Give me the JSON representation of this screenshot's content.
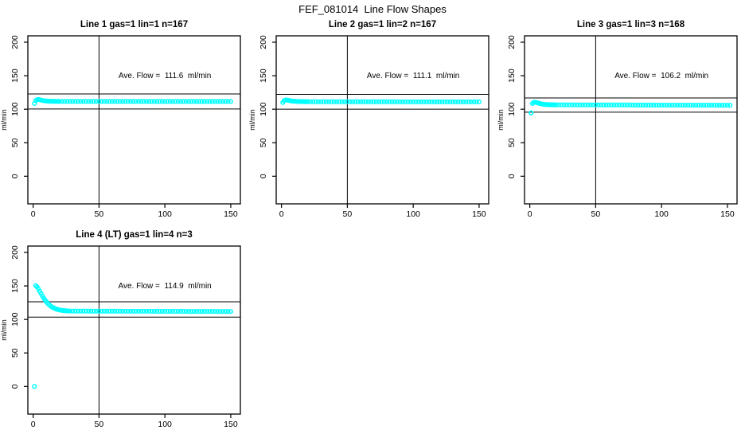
{
  "page_title": "FEF_081014  Line Flow Shapes",
  "layout": {
    "x_ticks": [
      0,
      50,
      100,
      150
    ],
    "y_ticks": [
      0,
      50,
      100,
      150,
      200
    ],
    "x_domain": [
      -4,
      157.3
    ],
    "y_domain": [
      -41.2,
      209.5
    ],
    "y_axis_label": "ml/min",
    "grid": "off",
    "legend": "none"
  },
  "style": {
    "point_color": "#00ffff",
    "axis_color": "#000000",
    "background": "#ffffff"
  },
  "chart_data": [
    {
      "id": "line1",
      "type": "scatter",
      "title": "Line 1 gas=1 lin=1 n=167",
      "annotation": "Ave. Flow =  111.6  ml/min",
      "ave_flow_ml_min": 111.6,
      "n": 167,
      "ref_lines": [
        122.8,
        100.4
      ],
      "vline_x": 50,
      "annotation_xy": [
        100,
        150
      ],
      "head_points": [
        [
          1,
          108.5
        ],
        [
          2,
          112.8
        ],
        [
          3,
          114.3
        ],
        [
          4,
          114.6
        ],
        [
          5,
          114.2
        ],
        [
          6,
          113.6
        ],
        [
          7,
          113.1
        ],
        [
          8,
          112.8
        ],
        [
          9,
          112.5
        ],
        [
          10,
          112.3
        ],
        [
          11,
          112.1
        ],
        [
          12,
          112.0
        ],
        [
          13,
          111.9
        ],
        [
          14,
          111.9
        ],
        [
          15,
          111.8
        ],
        [
          16,
          111.8
        ],
        [
          17,
          111.7
        ],
        [
          18,
          111.7
        ],
        [
          19,
          111.7
        ],
        [
          20,
          111.6
        ]
      ],
      "tail": {
        "x_from": 22,
        "x_to": 151,
        "step": 2,
        "y_from": 111.6,
        "y_to": 111.5
      }
    },
    {
      "id": "line2",
      "type": "scatter",
      "title": "Line 2 gas=1 lin=2 n=167",
      "annotation": "Ave. Flow =  111.1  ml/min",
      "ave_flow_ml_min": 111.1,
      "n": 167,
      "ref_lines": [
        122.2,
        100.0
      ],
      "vline_x": 50,
      "annotation_xy": [
        100,
        150
      ],
      "head_points": [
        [
          1,
          110.0
        ],
        [
          2,
          112.6
        ],
        [
          3,
          113.6
        ],
        [
          4,
          113.8
        ],
        [
          5,
          113.4
        ],
        [
          6,
          112.9
        ],
        [
          7,
          112.5
        ],
        [
          8,
          112.2
        ],
        [
          9,
          112.0
        ],
        [
          10,
          111.8
        ],
        [
          11,
          111.7
        ],
        [
          12,
          111.6
        ],
        [
          13,
          111.5
        ],
        [
          14,
          111.4
        ],
        [
          15,
          111.4
        ],
        [
          16,
          111.3
        ],
        [
          17,
          111.3
        ],
        [
          18,
          111.2
        ],
        [
          19,
          111.2
        ],
        [
          20,
          111.2
        ]
      ],
      "tail": {
        "x_from": 22,
        "x_to": 151,
        "step": 2,
        "y_from": 111.1,
        "y_to": 111.0
      }
    },
    {
      "id": "line3",
      "type": "scatter",
      "title": "Line 3 gas=1 lin=3 n=168",
      "annotation": "Ave. Flow =  106.2  ml/min",
      "ave_flow_ml_min": 106.2,
      "n": 168,
      "ref_lines": [
        116.8,
        95.6
      ],
      "vline_x": 50,
      "annotation_xy": [
        100,
        150
      ],
      "head_points": [
        [
          1,
          94.5
        ],
        [
          2,
          108.5
        ],
        [
          3,
          110.2
        ],
        [
          4,
          110.4
        ],
        [
          5,
          110.0
        ],
        [
          6,
          109.4
        ],
        [
          7,
          108.8
        ],
        [
          8,
          108.3
        ],
        [
          9,
          107.9
        ],
        [
          10,
          107.5
        ],
        [
          11,
          107.3
        ],
        [
          12,
          107.1
        ],
        [
          13,
          106.9
        ],
        [
          14,
          106.8
        ],
        [
          15,
          106.7
        ],
        [
          16,
          106.7
        ],
        [
          17,
          106.6
        ],
        [
          18,
          106.6
        ],
        [
          19,
          106.5
        ],
        [
          20,
          106.5
        ],
        [
          1,
          94.5
        ]
      ],
      "tail": {
        "x_from": 22,
        "x_to": 152,
        "step": 2,
        "y_from": 106.5,
        "y_to": 105.9
      }
    },
    {
      "id": "line4",
      "type": "scatter",
      "title": "Line 4 (LT) gas=1 lin=4 n=3",
      "annotation": "Ave. Flow =  114.9  ml/min",
      "ave_flow_ml_min": 114.9,
      "n": 3,
      "ref_lines": [
        126.4,
        103.4
      ],
      "vline_x": 50,
      "annotation_xy": [
        100,
        150
      ],
      "head_points": [
        [
          1,
          0.0
        ],
        [
          2,
          150.5
        ],
        [
          3,
          148.5
        ],
        [
          4,
          145.5
        ],
        [
          5,
          142.0
        ],
        [
          6,
          138.5
        ],
        [
          7,
          135.0
        ],
        [
          8,
          131.8
        ],
        [
          9,
          129.0
        ],
        [
          10,
          126.4
        ],
        [
          11,
          124.2
        ],
        [
          12,
          122.2
        ],
        [
          13,
          120.5
        ],
        [
          14,
          119.0
        ],
        [
          15,
          117.8
        ],
        [
          16,
          116.8
        ],
        [
          17,
          116.0
        ],
        [
          18,
          115.3
        ],
        [
          19,
          114.7
        ],
        [
          20,
          114.2
        ],
        [
          21,
          113.8
        ],
        [
          22,
          113.5
        ],
        [
          23,
          113.2
        ],
        [
          24,
          113.0
        ],
        [
          25,
          112.8
        ],
        [
          26,
          112.7
        ],
        [
          27,
          112.6
        ],
        [
          28,
          112.5
        ],
        [
          30,
          112.4
        ]
      ],
      "tail": {
        "x_from": 32,
        "x_to": 151,
        "step": 2,
        "y_from": 112.4,
        "y_to": 111.9
      }
    }
  ]
}
